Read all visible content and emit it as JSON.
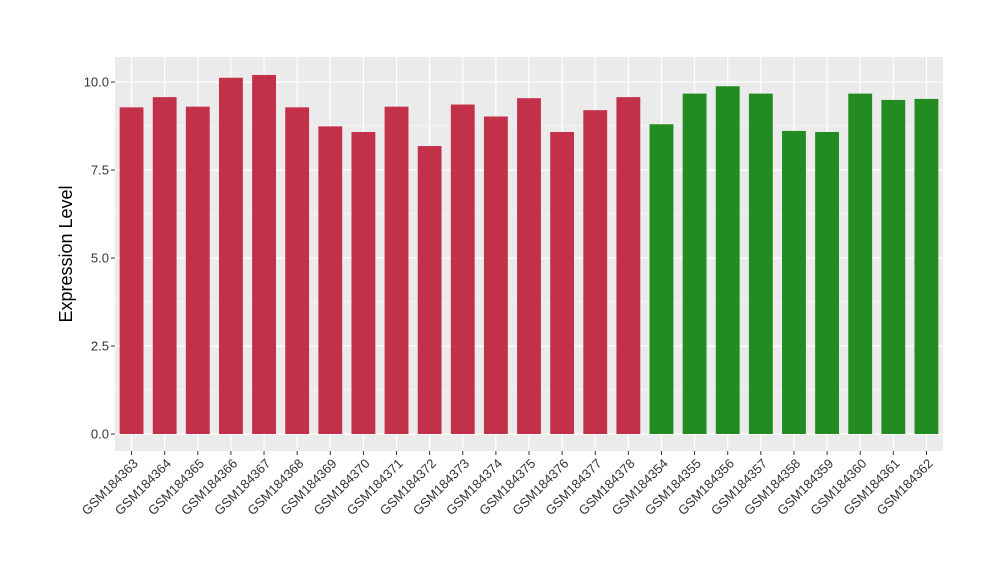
{
  "chart_data": {
    "type": "bar",
    "title": "",
    "xlabel": "",
    "ylabel": "Expression Level",
    "ylim": [
      0,
      10.5
    ],
    "y_ticks": [
      "0.0",
      "2.5",
      "5.0",
      "7.5",
      "10.0"
    ],
    "y_tick_values": [
      0,
      2.5,
      5.0,
      7.5,
      10.0
    ],
    "grid": true,
    "legend": "none",
    "categories": [
      "GSM184363",
      "GSM184364",
      "GSM184365",
      "GSM184366",
      "GSM184367",
      "GSM184368",
      "GSM184369",
      "GSM184370",
      "GSM184371",
      "GSM184372",
      "GSM184373",
      "GSM184374",
      "GSM184375",
      "GSM184376",
      "GSM184377",
      "GSM184378",
      "GSM184354",
      "GSM184355",
      "GSM184356",
      "GSM184357",
      "GSM184358",
      "GSM184359",
      "GSM184360",
      "GSM184361",
      "GSM184362"
    ],
    "values": [
      9.28,
      9.57,
      9.3,
      10.12,
      10.2,
      9.28,
      8.74,
      8.58,
      9.3,
      8.18,
      9.36,
      9.02,
      9.54,
      8.58,
      9.2,
      9.57,
      8.8,
      9.67,
      9.88,
      9.67,
      8.61,
      8.58,
      9.67,
      9.49,
      9.52
    ],
    "bar_colors": [
      "#c3304a",
      "#c3304a",
      "#c3304a",
      "#c3304a",
      "#c3304a",
      "#c3304a",
      "#c3304a",
      "#c3304a",
      "#c3304a",
      "#c3304a",
      "#c3304a",
      "#c3304a",
      "#c3304a",
      "#c3304a",
      "#c3304a",
      "#c3304a",
      "#228b22",
      "#228b22",
      "#228b22",
      "#228b22",
      "#228b22",
      "#228b22",
      "#228b22",
      "#228b22",
      "#228b22"
    ],
    "panel_background": "#ebebeb",
    "gridline_color": "#ffffff"
  }
}
